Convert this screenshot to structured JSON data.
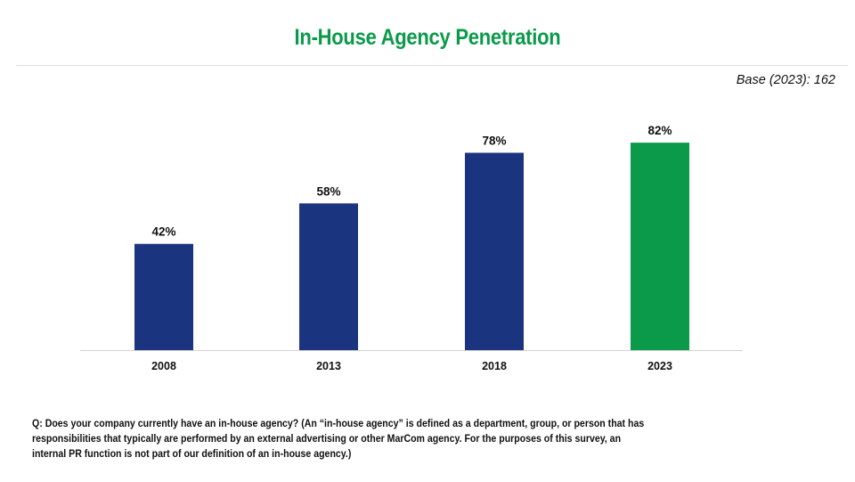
{
  "colors": {
    "title": "#0a9a4a",
    "bar_default": "#1b3480",
    "bar_highlight": "#0a9a4a",
    "baseline": "#d4d4d4"
  },
  "base_note": "Base (2023): 162",
  "footnote": "Q: Does your company currently have an in-house agency? (An “in-house agency” is defined as a department, group, or person that has responsibilities that typically are performed by an external advertising or other MarCom agency. For the purposes of this survey, an internal PR function is not part of our definition of an in-house agency.)",
  "chart_data": {
    "type": "bar",
    "title": "In-House Agency Penetration",
    "xlabel": "",
    "ylabel": "",
    "categories": [
      "2008",
      "2013",
      "2018",
      "2023"
    ],
    "values": [
      42,
      58,
      78,
      82
    ],
    "data_labels": [
      "42%",
      "58%",
      "78%",
      "82%"
    ],
    "highlight": [
      false,
      false,
      false,
      true
    ],
    "ylim": [
      0,
      100
    ],
    "grid": false,
    "legend": "none"
  }
}
